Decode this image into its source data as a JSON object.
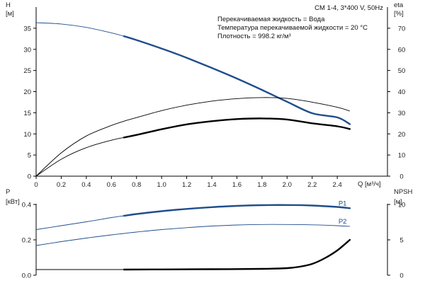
{
  "chart_data": [
    {
      "type": "line",
      "title": "CM 1-4, 3*400 V, 50Hz",
      "xlabel": "Q [м³/ч]",
      "ylabel_left": "H [м]",
      "ylabel_right": "eta [%]",
      "xlim": [
        0,
        2.8
      ],
      "ylim_left": [
        0,
        40
      ],
      "ylim_right": [
        0,
        80
      ],
      "x_ticks": [
        "0",
        "0.2",
        "0.4",
        "0.6",
        "0.8",
        "1.0",
        "1.2",
        "1.4",
        "1.6",
        "1.8",
        "2.0",
        "2.2",
        "2.4"
      ],
      "y_ticks_left": [
        "0",
        "5",
        "10",
        "15",
        "20",
        "25",
        "30",
        "35"
      ],
      "y_ticks_right": [
        "0",
        "10",
        "20",
        "30",
        "40",
        "50",
        "60",
        "70"
      ],
      "info_lines": [
        "Перекачиваемая жидкость = Вода",
        "Температура перекачиваемой жидкости = 20 °C",
        "Плотность = 998.2 кг/м³"
      ],
      "grid": false,
      "series": [
        {
          "axis": "left",
          "color": "#1f4e8c",
          "x": [
            0,
            0.2,
            0.4,
            0.6,
            0.7,
            0.8,
            1.0,
            1.2,
            1.4,
            1.6,
            1.8,
            2.0,
            2.2,
            2.4,
            2.5
          ],
          "y": [
            36.3,
            36.0,
            35.2,
            33.9,
            33.1,
            32.2,
            30.2,
            28.0,
            25.6,
            23.1,
            20.4,
            17.6,
            14.9,
            13.9,
            12.3
          ],
          "bold_from_x": 0.7
        },
        {
          "axis": "right",
          "color": "#000000",
          "x": [
            0,
            0.2,
            0.4,
            0.6,
            0.7,
            0.8,
            1.0,
            1.2,
            1.4,
            1.6,
            1.8,
            2.0,
            2.2,
            2.4,
            2.5
          ],
          "y": [
            0,
            11.0,
            19.0,
            24.0,
            26.0,
            27.7,
            31.0,
            33.6,
            35.5,
            36.7,
            37.2,
            36.8,
            35.0,
            32.6,
            30.8
          ],
          "bold_from_x": null
        },
        {
          "axis": "right",
          "color": "#000000",
          "x": [
            0,
            0.2,
            0.4,
            0.6,
            0.7,
            0.8,
            1.0,
            1.2,
            1.4,
            1.6,
            1.8,
            2.0,
            2.2,
            2.4,
            2.5
          ],
          "y": [
            0,
            8.0,
            13.5,
            17.0,
            18.3,
            19.5,
            22.2,
            24.5,
            26.0,
            27.0,
            27.3,
            26.8,
            25.0,
            23.6,
            22.3
          ],
          "bold_from_x": 0.7
        }
      ]
    },
    {
      "type": "line",
      "xlabel": "",
      "ylabel_left": "P [кВт]",
      "ylabel_right": "NPSH [м]",
      "xlim": [
        0,
        2.8
      ],
      "ylim_left": [
        0,
        0.5
      ],
      "ylim_right": [
        0,
        12.5
      ],
      "y_ticks_left": [
        "0.0",
        "0.2",
        "0.4"
      ],
      "y_ticks_right": [
        "0",
        "5",
        "10"
      ],
      "grid": false,
      "series": [
        {
          "name": "P1",
          "axis": "left",
          "color": "#1f4e8c",
          "x": [
            0,
            0.2,
            0.4,
            0.6,
            0.7,
            0.8,
            1.0,
            1.2,
            1.4,
            1.6,
            1.8,
            2.0,
            2.2,
            2.4,
            2.5
          ],
          "y": [
            0.258,
            0.28,
            0.302,
            0.326,
            0.336,
            0.346,
            0.362,
            0.375,
            0.385,
            0.392,
            0.396,
            0.397,
            0.394,
            0.386,
            0.379
          ],
          "bold_from_x": 0.7
        },
        {
          "name": "P2",
          "axis": "left",
          "color": "#1f4e8c",
          "x": [
            0,
            0.2,
            0.4,
            0.6,
            0.7,
            0.8,
            1.0,
            1.2,
            1.4,
            1.6,
            1.8,
            2.0,
            2.2,
            2.4,
            2.5
          ],
          "y": [
            0.168,
            0.19,
            0.21,
            0.228,
            0.236,
            0.244,
            0.258,
            0.269,
            0.278,
            0.284,
            0.287,
            0.287,
            0.285,
            0.28,
            0.276
          ],
          "bold_from_x": null
        },
        {
          "axis": "right",
          "color": "#000000",
          "x": [
            0,
            0.7,
            1.0,
            1.4,
            1.8,
            2.0,
            2.1,
            2.2,
            2.3,
            2.4,
            2.5
          ],
          "y": [
            0.8,
            0.8,
            0.82,
            0.85,
            0.9,
            1.0,
            1.2,
            1.6,
            2.4,
            3.5,
            5.0
          ],
          "bold_from_x": 0.7
        }
      ]
    }
  ]
}
